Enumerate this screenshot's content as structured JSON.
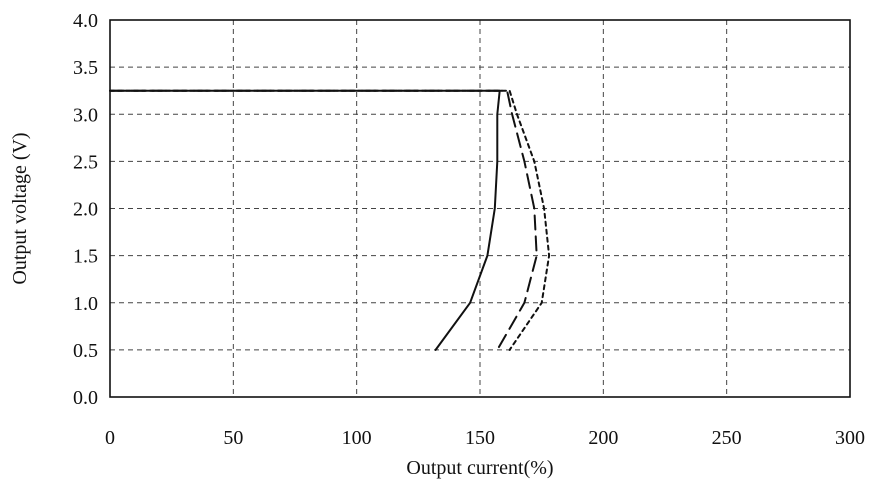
{
  "chart_data": {
    "type": "line",
    "title": "",
    "xlabel": "Output current(%)",
    "ylabel": "Output voltage (V)",
    "xlim": [
      0,
      300
    ],
    "ylim": [
      0.0,
      4.0
    ],
    "x_ticks": [
      0,
      50,
      100,
      150,
      200,
      250,
      300
    ],
    "y_ticks": [
      0.0,
      0.5,
      1.0,
      1.5,
      2.0,
      2.5,
      3.0,
      3.5,
      4.0
    ],
    "x_tick_labels": [
      "0",
      "50",
      "100",
      "150",
      "200",
      "250",
      "300"
    ],
    "y_tick_labels": [
      "0.0",
      "0.5",
      "1.0",
      "1.5",
      "2.0",
      "2.5",
      "3.0",
      "3.5",
      "4.0"
    ],
    "grid": true,
    "series": [
      {
        "style": "solid",
        "points": [
          [
            0,
            3.25
          ],
          [
            158,
            3.25
          ],
          [
            157,
            3.0
          ],
          [
            157,
            2.5
          ],
          [
            156,
            2.0
          ],
          [
            153,
            1.5
          ],
          [
            146,
            1.0
          ],
          [
            132,
            0.5
          ]
        ]
      },
      {
        "style": "dashed",
        "points": [
          [
            0,
            3.25
          ],
          [
            161,
            3.25
          ],
          [
            163,
            3.0
          ],
          [
            168,
            2.5
          ],
          [
            172,
            2.0
          ],
          [
            173,
            1.5
          ],
          [
            168,
            1.0
          ],
          [
            157,
            0.5
          ]
        ]
      },
      {
        "style": "dotted",
        "points": [
          [
            0,
            3.25
          ],
          [
            162,
            3.25
          ],
          [
            165,
            3.0
          ],
          [
            172,
            2.5
          ],
          [
            176,
            2.0
          ],
          [
            178,
            1.5
          ],
          [
            175,
            1.0
          ],
          [
            162,
            0.5
          ]
        ]
      }
    ]
  }
}
